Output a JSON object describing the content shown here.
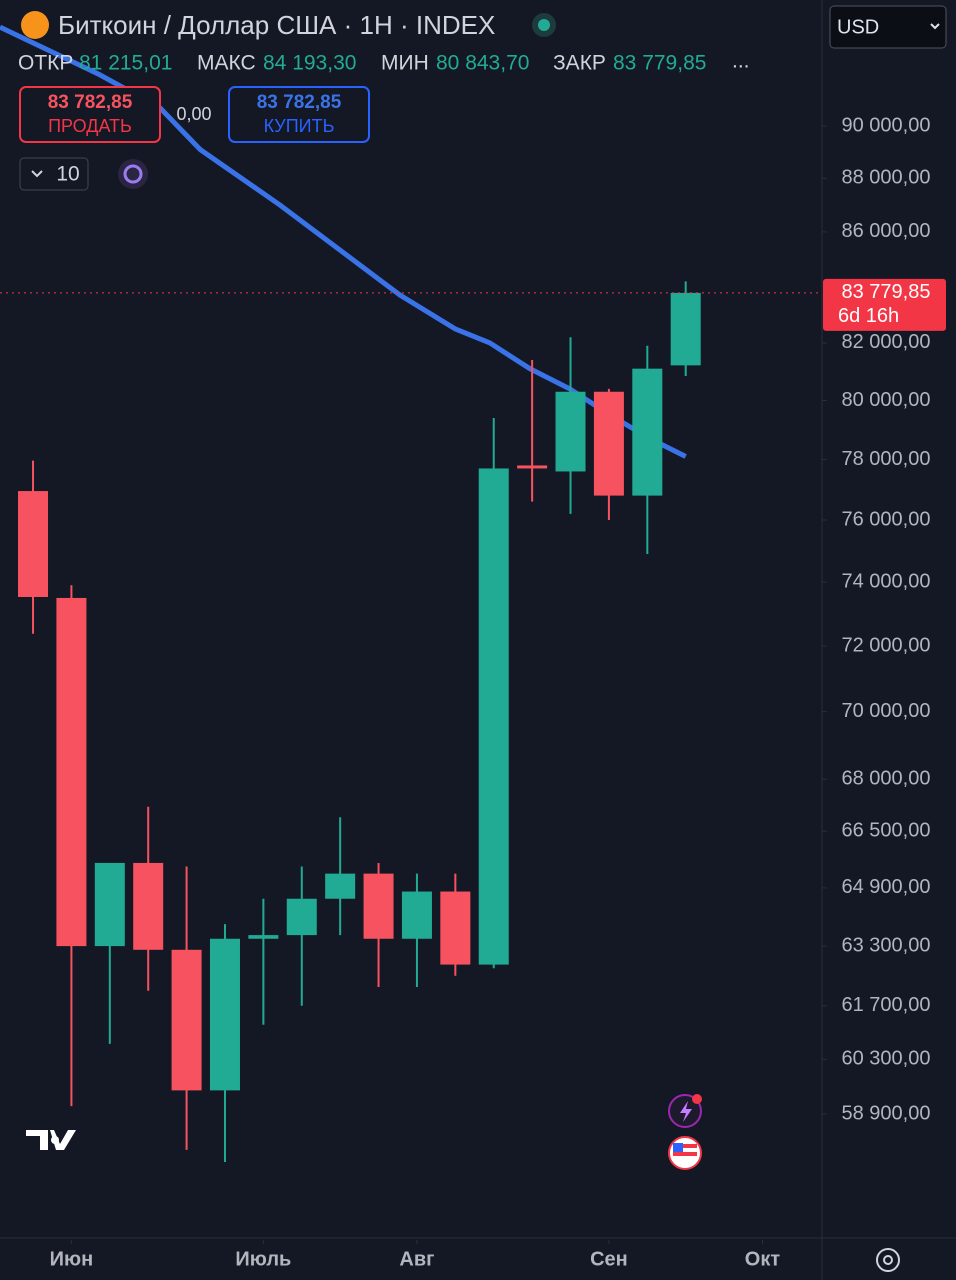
{
  "header": {
    "title": "Биткоин / Доллар США · 1H · INDEX",
    "stats": [
      {
        "label": "ОТКР",
        "value": "81 215,01"
      },
      {
        "label": "МАКС",
        "value": "84 193,30"
      },
      {
        "label": "МИН",
        "value": "80 843,70"
      },
      {
        "label": "ЗАКР",
        "value": "83 779,85"
      }
    ],
    "more": "..."
  },
  "trade": {
    "sell_price": "83 782,85",
    "sell_label": "ПРОДАТЬ",
    "spread": "0,00",
    "buy_price": "83 782,85",
    "buy_label": "КУПИТЬ",
    "quantity": "10"
  },
  "currency": "USD",
  "chart_data": {
    "type": "candlestick",
    "log_scale": true,
    "x": [
      0,
      1,
      2,
      3,
      4,
      5,
      6,
      7,
      8,
      9,
      10,
      11,
      12,
      13,
      14,
      15,
      16,
      17
    ],
    "open": [
      76950,
      73500,
      63300,
      65600,
      63200,
      59500,
      63500,
      63600,
      64600,
      65300,
      63500,
      64800,
      62800,
      77800,
      77600,
      80300,
      76800,
      81215.01
    ],
    "high": [
      77960,
      73900,
      65600,
      67200,
      65500,
      63900,
      64600,
      65500,
      66900,
      65600,
      65300,
      65300,
      79400,
      81400,
      82200,
      80400,
      81900,
      84193.3
    ],
    "low": [
      72380,
      59100,
      60700,
      62100,
      58000,
      57700,
      61200,
      61700,
      63600,
      62200,
      62200,
      62500,
      62700,
      76600,
      76200,
      76000,
      74900,
      80843.7
    ],
    "close": [
      73530,
      63300,
      65600,
      63200,
      59500,
      63500,
      63600,
      64600,
      65300,
      63500,
      64800,
      62800,
      77700,
      77700,
      80300,
      76800,
      81100,
      83779.85
    ],
    "up_color": "#22ab94",
    "down_color": "#f7525f",
    "moving_average": {
      "color": "#3a73e8",
      "x": [
        -0.86,
        1.74,
        3.31,
        4.35,
        6.43,
        9.56,
        10.99,
        11.9,
        12.94,
        13.98,
        15.03,
        16.07,
        17.0
      ],
      "values": [
        93900,
        92000,
        90700,
        89100,
        87000,
        83700,
        82500,
        82000,
        81100,
        80400,
        79500,
        78700,
        78100
      ]
    },
    "last_price": {
      "value": 83779.85,
      "label": "83 779,85"
    },
    "countdown": "6d 16h",
    "xlim": [
      -0.86,
      20.55
    ],
    "xticks": [
      {
        "value": 1,
        "label": "Июн"
      },
      {
        "value": 6,
        "label": "Июль"
      },
      {
        "value": 10,
        "label": "Авг"
      },
      {
        "value": 15,
        "label": "Сен"
      },
      {
        "value": 19,
        "label": "Окт"
      }
    ],
    "ylim": [
      55800,
      95000
    ],
    "yticks": [
      {
        "value": 90000,
        "label": "90 000,00"
      },
      {
        "value": 88000,
        "label": "88 000,00"
      },
      {
        "value": 86000,
        "label": "86 000,00"
      },
      {
        "value": 82000,
        "label": "82 000,00"
      },
      {
        "value": 80000,
        "label": "80 000,00"
      },
      {
        "value": 78000,
        "label": "78 000,00"
      },
      {
        "value": 76000,
        "label": "76 000,00"
      },
      {
        "value": 74000,
        "label": "74 000,00"
      },
      {
        "value": 72000,
        "label": "72 000,00"
      },
      {
        "value": 70000,
        "label": "70 000,00"
      },
      {
        "value": 68000,
        "label": "68 000,00"
      },
      {
        "value": 66500,
        "label": "66 500,00"
      },
      {
        "value": 64900,
        "label": "64 900,00"
      },
      {
        "value": 63300,
        "label": "63 300,00"
      },
      {
        "value": 61700,
        "label": "61 700,00"
      },
      {
        "value": 60300,
        "label": "60 300,00"
      },
      {
        "value": 58900,
        "label": "58 900,00"
      }
    ]
  }
}
